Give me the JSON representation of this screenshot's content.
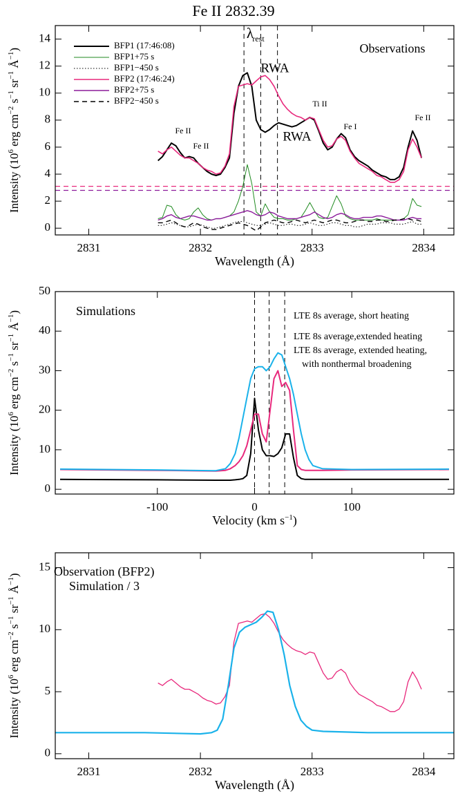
{
  "chart_data": [
    {
      "type": "line",
      "title": "Fe II 2832.39",
      "panel_label": "Observations",
      "x_label": [
        "Wavelength (Å)"
      ],
      "y_label": [
        "Intensity (10",
        "6",
        " erg cm",
        "−2",
        " s",
        "−1",
        " sr",
        "−1",
        " Å",
        "−1",
        ")"
      ],
      "xlim": [
        2830.7,
        2834.27
      ],
      "ylim": [
        -0.5,
        15
      ],
      "xticks": [
        2831,
        2832,
        2833,
        2834
      ],
      "yticks": [
        0,
        2,
        4,
        6,
        8,
        10,
        12,
        14
      ],
      "legend": {
        "position": "upper left",
        "samples": true
      },
      "x": [
        2831.62,
        2831.66,
        2831.7,
        2831.74,
        2831.78,
        2831.82,
        2831.86,
        2831.9,
        2831.94,
        2831.98,
        2832.02,
        2832.06,
        2832.1,
        2832.14,
        2832.18,
        2832.22,
        2832.26,
        2832.3,
        2832.34,
        2832.38,
        2832.42,
        2832.46,
        2832.5,
        2832.54,
        2832.58,
        2832.62,
        2832.66,
        2832.7,
        2832.74,
        2832.78,
        2832.82,
        2832.86,
        2832.9,
        2832.94,
        2832.98,
        2833.02,
        2833.06,
        2833.1,
        2833.14,
        2833.18,
        2833.22,
        2833.26,
        2833.3,
        2833.34,
        2833.38,
        2833.42,
        2833.46,
        2833.5,
        2833.54,
        2833.58,
        2833.62,
        2833.66,
        2833.7,
        2833.74,
        2833.78,
        2833.82,
        2833.86,
        2833.9,
        2833.94,
        2833.98
      ],
      "series": [
        {
          "name": "BFP1 (17:46:08)",
          "color": "#000000",
          "line_style": "solid",
          "width": 2,
          "values": [
            5.0,
            5.3,
            5.8,
            6.3,
            6.1,
            5.6,
            5.2,
            5.3,
            5.2,
            4.8,
            4.5,
            4.2,
            4.0,
            3.9,
            4.0,
            4.5,
            5.2,
            8.5,
            10.5,
            11.3,
            11.5,
            10.5,
            8.0,
            7.3,
            7.1,
            7.3,
            7.6,
            7.8,
            7.7,
            7.6,
            7.5,
            7.6,
            7.8,
            8.0,
            8.2,
            8.0,
            7.2,
            6.3,
            5.8,
            6.0,
            6.6,
            7.0,
            6.7,
            5.8,
            5.3,
            5.0,
            4.8,
            4.6,
            4.3,
            4.1,
            3.9,
            3.8,
            3.6,
            3.6,
            3.8,
            4.5,
            6.0,
            7.2,
            6.5,
            5.2
          ]
        },
        {
          "name": "BFP1+75 s",
          "color": "#1f8a1f",
          "line_style": "solid",
          "width": 1,
          "values": [
            0.7,
            0.8,
            1.7,
            1.6,
            1.0,
            0.7,
            0.6,
            0.7,
            1.2,
            1.5,
            1.0,
            0.7,
            0.6,
            0.7,
            0.7,
            0.8,
            0.9,
            1.2,
            2.0,
            3.1,
            4.7,
            3.3,
            1.2,
            0.9,
            1.8,
            1.2,
            0.8,
            0.7,
            0.7,
            0.6,
            0.6,
            0.7,
            0.8,
            1.3,
            1.9,
            1.3,
            0.8,
            0.7,
            0.8,
            1.6,
            2.4,
            1.8,
            0.9,
            0.7,
            0.6,
            0.6,
            0.6,
            0.6,
            0.6,
            0.7,
            0.6,
            0.6,
            0.6,
            0.6,
            0.6,
            0.7,
            1.0,
            2.2,
            1.7,
            1.6
          ]
        },
        {
          "name": "BFP1−450 s",
          "color": "#000000",
          "line_style": "dotted",
          "width": 1,
          "values": [
            0.2,
            0.2,
            0.3,
            0.4,
            0.3,
            0.2,
            0.1,
            0.1,
            0.2,
            0.3,
            0.2,
            0.1,
            0.0,
            0.0,
            0.1,
            0.2,
            0.3,
            0.4,
            0.5,
            0.5,
            0.4,
            0.3,
            0.2,
            0.2,
            0.3,
            0.4,
            0.3,
            0.2,
            0.2,
            0.3,
            0.3,
            0.2,
            0.2,
            0.3,
            0.4,
            0.3,
            0.2,
            0.2,
            0.3,
            0.4,
            0.4,
            0.3,
            0.2,
            0.2,
            0.1,
            0.1,
            0.2,
            0.3,
            0.3,
            0.3,
            0.4,
            0.4,
            0.4,
            0.3,
            0.3,
            0.3,
            0.4,
            0.5,
            0.3,
            0.3
          ]
        },
        {
          "name": "BFP2 (17:46:24)",
          "color": "#e8287c",
          "line_style": "solid",
          "width": 1.6,
          "values": [
            5.7,
            5.5,
            5.8,
            6.0,
            5.7,
            5.4,
            5.2,
            5.2,
            5.0,
            4.8,
            4.5,
            4.3,
            4.2,
            4.0,
            4.1,
            4.6,
            5.5,
            9.0,
            10.5,
            10.6,
            10.7,
            10.6,
            10.9,
            11.2,
            11.3,
            11.0,
            10.5,
            9.8,
            9.2,
            8.8,
            8.5,
            8.3,
            8.2,
            8.0,
            8.2,
            8.1,
            7.3,
            6.5,
            6.0,
            6.1,
            6.6,
            6.8,
            6.5,
            5.7,
            5.2,
            4.8,
            4.6,
            4.4,
            4.2,
            3.9,
            3.8,
            3.6,
            3.4,
            3.4,
            3.6,
            4.2,
            5.8,
            6.6,
            6.0,
            5.2
          ]
        },
        {
          "name": "BFP2+75 s",
          "color": "#8b1a9a",
          "line_style": "solid",
          "width": 1.4,
          "values": [
            0.6,
            0.7,
            0.9,
            1.0,
            0.8,
            0.7,
            0.8,
            0.9,
            0.9,
            0.8,
            0.7,
            0.6,
            0.6,
            0.7,
            0.7,
            0.8,
            0.9,
            1.0,
            1.1,
            1.2,
            1.3,
            1.2,
            1.0,
            0.9,
            1.0,
            1.2,
            1.1,
            0.9,
            0.8,
            0.7,
            0.7,
            0.7,
            0.8,
            0.9,
            1.0,
            1.2,
            1.0,
            0.8,
            0.7,
            0.8,
            1.0,
            1.1,
            1.0,
            0.8,
            0.7,
            0.7,
            0.8,
            0.8,
            0.8,
            0.9,
            0.9,
            0.8,
            0.7,
            0.6,
            0.6,
            0.6,
            0.7,
            0.8,
            0.7,
            0.7
          ]
        },
        {
          "name": "BFP2−450 s",
          "color": "#000000",
          "line_style": "dashed",
          "width": 1.4,
          "values": [
            0.4,
            0.4,
            0.5,
            0.6,
            0.4,
            0.2,
            0.1,
            0.2,
            0.4,
            0.3,
            0.1,
            0.0,
            -0.1,
            -0.1,
            0.0,
            0.1,
            0.2,
            0.3,
            0.4,
            0.3,
            0.2,
            0.0,
            -0.2,
            0.1,
            0.4,
            0.5,
            0.6,
            0.5,
            0.4,
            0.4,
            0.5,
            0.6,
            0.5,
            0.4,
            0.5,
            0.6,
            0.5,
            0.4,
            0.5,
            0.6,
            0.6,
            0.5,
            0.4,
            0.4,
            0.5,
            0.6,
            0.6,
            0.5,
            0.5,
            0.6,
            0.6,
            0.5,
            0.5,
            0.6,
            0.6,
            0.7,
            0.7,
            0.6,
            0.6,
            0.5
          ]
        }
      ],
      "hlines": [
        {
          "value": 3.1,
          "color": "#e8287c"
        },
        {
          "value": 2.8,
          "color": "#8b1a9a"
        }
      ],
      "vlines": [
        2832.39,
        2832.54,
        2832.69
      ],
      "annotations": [
        "λ",
        "rest",
        "RWA",
        "RWA",
        "Fe II",
        "Fe II",
        "Ti II",
        "Fe I",
        "Fe II"
      ]
    },
    {
      "type": "line",
      "panel_label": "Simulations",
      "x_label": [
        "Velocity (km s",
        "−1",
        ")"
      ],
      "y_label": [
        "Intensity (10",
        "6",
        " erg cm",
        "−2",
        " s",
        "−1",
        " sr",
        "−1",
        " Å",
        "−1",
        ")"
      ],
      "xlim": [
        -205,
        205
      ],
      "ylim": [
        -1.2,
        50
      ],
      "xticks": [
        -100,
        0,
        100
      ],
      "yticks": [
        0,
        10,
        20,
        30,
        40,
        50
      ],
      "legend": {
        "position": "upper right",
        "samples": false
      },
      "x": [
        -200,
        -100,
        -40,
        -30,
        -25,
        -20,
        -16,
        -12,
        -8,
        -4,
        0,
        4,
        8,
        12,
        16,
        20,
        24,
        28,
        32,
        36,
        40,
        44,
        48,
        52,
        56,
        60,
        70,
        100,
        200
      ],
      "series": [
        {
          "name": [
            "LTE 8s average, short heating"
          ],
          "color": "#000000",
          "line_style": "solid",
          "width": 2,
          "values": [
            2.5,
            2.4,
            2.3,
            2.3,
            2.3,
            2.4,
            2.5,
            2.7,
            3.5,
            9,
            23,
            15,
            10,
            8.5,
            8.5,
            8.3,
            9,
            10.5,
            14,
            14,
            8,
            3.5,
            2.7,
            2.5,
            2.5,
            2.5,
            2.5,
            2.5,
            2.5
          ]
        },
        {
          "name": [
            "LTE 8s average,extended heating"
          ],
          "color": "#e8287c",
          "line_style": "solid",
          "width": 2,
          "values": [
            5.0,
            4.8,
            4.6,
            4.8,
            5.2,
            6,
            7,
            8.5,
            11,
            15,
            19,
            19,
            14,
            12,
            20,
            28,
            30,
            26,
            27,
            25,
            15,
            6,
            5,
            4.8,
            4.8,
            4.8,
            4.8,
            4.9,
            5.0
          ]
        },
        {
          "name": [
            "LTE 8s average, extended heating,",
            "with nonthermal broadening"
          ],
          "color": "#1ab2ea",
          "line_style": "solid",
          "width": 2,
          "values": [
            5.1,
            4.9,
            4.7,
            5.2,
            6.5,
            9,
            13,
            18,
            23,
            28,
            30.5,
            31,
            31,
            30,
            31,
            33,
            34.5,
            34,
            31,
            28,
            24,
            19,
            14,
            10,
            7.5,
            6,
            5.2,
            5.0,
            5.1
          ]
        }
      ],
      "vlines": [
        0,
        15,
        31
      ]
    },
    {
      "type": "line",
      "x_label": [
        "Wavelength (Å)"
      ],
      "y_label": [
        "Intensity (10",
        "6",
        " erg cm",
        "−2",
        " s",
        "−1",
        " sr",
        "−1",
        " Å",
        "−1",
        ")"
      ],
      "xlim": [
        2830.7,
        2834.27
      ],
      "ylim": [
        -0.4,
        16.2
      ],
      "xticks": [
        2831,
        2832,
        2833,
        2834
      ],
      "yticks": [
        0,
        5,
        10,
        15
      ],
      "legend": {
        "position": "upper left",
        "samples": false
      },
      "series": [
        {
          "name": [
            "Observation (BFP2)"
          ],
          "color": "#e8287c",
          "line_style": "solid",
          "width": 1.3,
          "x": [
            2831.62,
            2831.66,
            2831.7,
            2831.74,
            2831.78,
            2831.82,
            2831.86,
            2831.9,
            2831.94,
            2831.98,
            2832.02,
            2832.06,
            2832.1,
            2832.14,
            2832.18,
            2832.22,
            2832.26,
            2832.3,
            2832.34,
            2832.38,
            2832.42,
            2832.46,
            2832.5,
            2832.54,
            2832.58,
            2832.62,
            2832.66,
            2832.7,
            2832.74,
            2832.78,
            2832.82,
            2832.86,
            2832.9,
            2832.94,
            2832.98,
            2833.02,
            2833.06,
            2833.1,
            2833.14,
            2833.18,
            2833.22,
            2833.26,
            2833.3,
            2833.34,
            2833.38,
            2833.42,
            2833.46,
            2833.5,
            2833.54,
            2833.58,
            2833.62,
            2833.66,
            2833.7,
            2833.74,
            2833.78,
            2833.82,
            2833.86,
            2833.9,
            2833.94,
            2833.98
          ],
          "values": [
            5.7,
            5.5,
            5.8,
            6.0,
            5.7,
            5.4,
            5.2,
            5.2,
            5.0,
            4.8,
            4.5,
            4.3,
            4.2,
            4.0,
            4.1,
            4.6,
            5.5,
            9.0,
            10.5,
            10.6,
            10.7,
            10.6,
            10.9,
            11.2,
            11.3,
            11.0,
            10.5,
            9.8,
            9.2,
            8.8,
            8.5,
            8.3,
            8.2,
            8.0,
            8.2,
            8.1,
            7.3,
            6.5,
            6.0,
            6.1,
            6.6,
            6.8,
            6.5,
            5.7,
            5.2,
            4.8,
            4.6,
            4.4,
            4.2,
            3.9,
            3.8,
            3.6,
            3.4,
            3.4,
            3.6,
            4.2,
            5.8,
            6.6,
            6.0,
            5.2
          ]
        },
        {
          "name": [
            "Simulation / 3"
          ],
          "color": "#1ab2ea",
          "line_style": "solid",
          "width": 2.2,
          "x": [
            2830.7,
            2831.5,
            2832.0,
            2832.1,
            2832.15,
            2832.2,
            2832.25,
            2832.3,
            2832.35,
            2832.4,
            2832.45,
            2832.5,
            2832.55,
            2832.6,
            2832.65,
            2832.7,
            2832.75,
            2832.8,
            2832.85,
            2832.9,
            2832.95,
            2833.0,
            2833.1,
            2833.5,
            2834.27
          ],
          "values": [
            1.7,
            1.7,
            1.6,
            1.7,
            1.9,
            2.8,
            5.5,
            8.5,
            9.8,
            10.2,
            10.4,
            10.6,
            11.0,
            11.5,
            11.4,
            10.0,
            8.0,
            5.5,
            3.8,
            2.7,
            2.2,
            1.9,
            1.8,
            1.7,
            1.7
          ]
        }
      ]
    }
  ]
}
